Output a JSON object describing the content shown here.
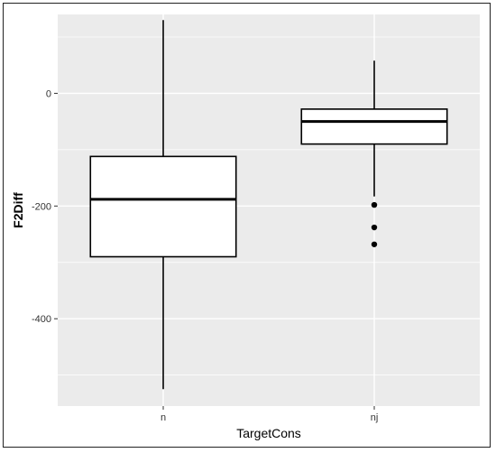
{
  "chart_data": {
    "type": "boxplot",
    "title": "",
    "xlabel": "TargetCons",
    "ylabel": "F2Diff",
    "categories": [
      "n",
      "nj"
    ],
    "ylim": [
      -555,
      140
    ],
    "yticks": [
      0,
      -200,
      -400
    ],
    "ytick_labels": [
      "0",
      "-200",
      "-400"
    ],
    "grid": true,
    "background": "#ebebeb",
    "boxes": [
      {
        "category": "n",
        "min": -525,
        "q1": -290,
        "median": -188,
        "q3": -112,
        "max": 130,
        "outliers": []
      },
      {
        "category": "nj",
        "min": -183,
        "q1": -90,
        "median": -50,
        "q3": -28,
        "max": 58,
        "outliers": [
          -198,
          -238,
          -268
        ]
      }
    ]
  }
}
